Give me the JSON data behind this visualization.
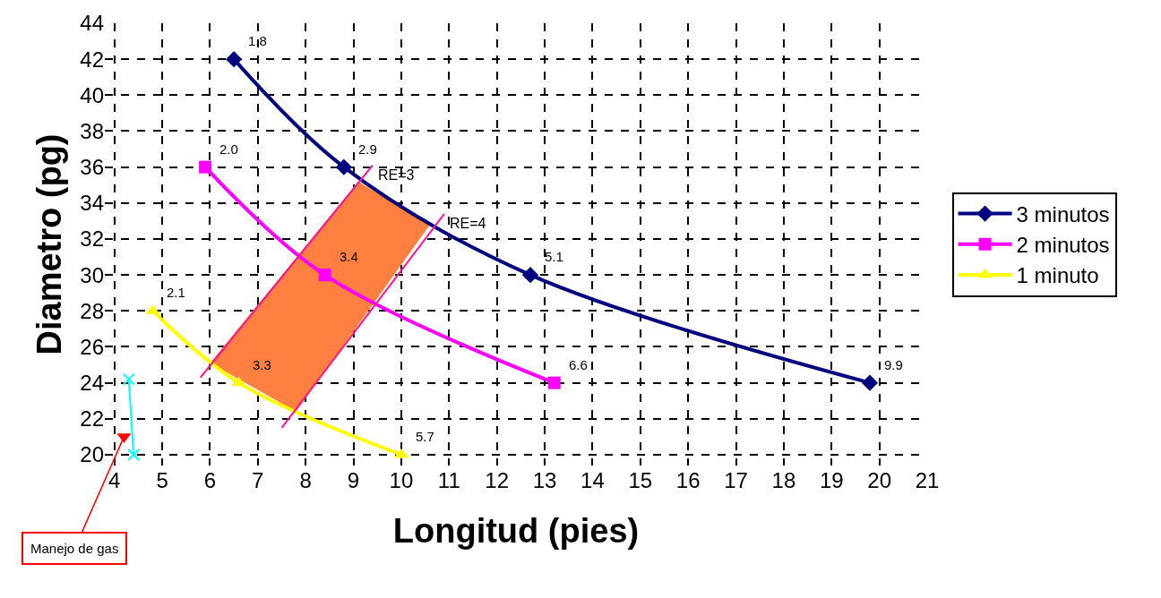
{
  "chart_data": {
    "type": "line",
    "xlabel": "Longitud (pies)",
    "ylabel": "Diametro (pg)",
    "xlim": [
      3.8,
      21
    ],
    "xticks": [
      4,
      5,
      6,
      7,
      8,
      9,
      10,
      11,
      12,
      13,
      14,
      15,
      16,
      17,
      18,
      19,
      20,
      21
    ],
    "ylim": [
      19.4,
      44
    ],
    "yticks": [
      20,
      22,
      24,
      26,
      28,
      30,
      32,
      34,
      36,
      38,
      40,
      42,
      44
    ],
    "grid": true,
    "legend": "right",
    "line_style": "solid",
    "series": [
      {
        "type": "area",
        "color": "#ff8040",
        "x": [
          6.0,
          9.1,
          10.6,
          7.8
        ],
        "values": [
          25.1,
          35.2,
          32.8,
          22.4
        ]
      },
      {
        "name": "3 minutos",
        "color": "#000080",
        "marker": "diamond",
        "x": [
          6.5,
          8.8,
          12.7,
          19.8
        ],
        "values": [
          42,
          36,
          30,
          24
        ]
      },
      {
        "name": "2 minutos",
        "color": "#ff00ff",
        "marker": "square",
        "x": [
          5.9,
          8.4,
          13.2
        ],
        "values": [
          36,
          30,
          24
        ]
      },
      {
        "name": "1 minuto",
        "color": "#ffff00",
        "marker": "triangle",
        "x": [
          4.8,
          6.6,
          10.0
        ],
        "values": [
          28,
          24,
          20
        ]
      },
      {
        "name": "RE=3",
        "color": "#ff1493",
        "marker": "none",
        "x": [
          5.8,
          9.4
        ],
        "values": [
          24.3,
          36.1
        ]
      },
      {
        "name": "RE=4",
        "color": "#ff1493",
        "marker": "none",
        "x": [
          7.5,
          10.9
        ],
        "values": [
          21.5,
          33.4
        ]
      },
      {
        "color": "#00ffff",
        "marker": "cross",
        "x": [
          4.3,
          4.4
        ],
        "values": [
          24.2,
          20.0
        ]
      },
      {
        "type": "scatter",
        "color": "#ff0000",
        "marker": "triangle-down",
        "x": [
          4.2
        ],
        "values": [
          21.0
        ]
      }
    ],
    "annotations": [
      {
        "text": "1.8",
        "x": 6.5,
        "y": 42
      },
      {
        "text": "2.9",
        "x": 8.8,
        "y": 36
      },
      {
        "text": "5.1",
        "x": 12.7,
        "y": 30
      },
      {
        "text": "9.9",
        "x": 19.8,
        "y": 24
      },
      {
        "text": "2.0",
        "x": 5.9,
        "y": 36
      },
      {
        "text": "3.4",
        "x": 8.4,
        "y": 30
      },
      {
        "text": "6.6",
        "x": 13.2,
        "y": 24
      },
      {
        "text": "2.1",
        "x": 4.8,
        "y": 28
      },
      {
        "text": "3.3",
        "x": 6.6,
        "y": 24
      },
      {
        "text": "5.7",
        "x": 10.0,
        "y": 20
      },
      {
        "text": "Manejo de gas",
        "x": 4.2,
        "y": 21
      }
    ]
  }
}
